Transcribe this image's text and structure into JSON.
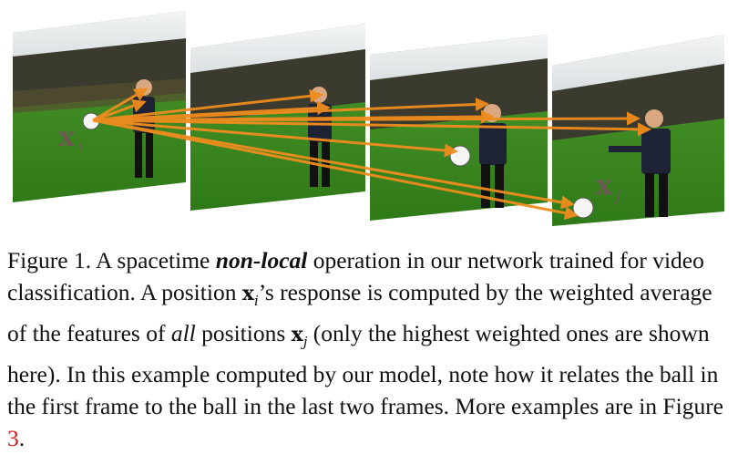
{
  "figure": {
    "frames": [
      {
        "label": "frame-1"
      },
      {
        "label": "frame-2"
      },
      {
        "label": "frame-3"
      },
      {
        "label": "frame-4"
      }
    ],
    "label_xi": {
      "main": "x",
      "sub": "i"
    },
    "label_xj": {
      "main": "x",
      "sub": "j"
    },
    "colors": {
      "arrow": "#f08c1e",
      "grass": "#3f8a22",
      "trees": "#3b3a2e",
      "sky": "#e9ecef"
    }
  },
  "caption": {
    "part1": "Figure 1. A spacetime ",
    "emph1": "non-local",
    "part2": " operation in our network trained for video classification. A position ",
    "xi_main": "x",
    "xi_sub": "i",
    "part3": "’s response is computed by the weighted average of the features of ",
    "emph2": "all",
    "part4": " positions ",
    "xj_main": "x",
    "xj_sub": "j",
    "part5": " (only the highest weighted ones are shown here). In this example computed by our model, note how it relates the ball in the first frame to the ball in the last two frames. More examples are in Figure ",
    "ref": "3",
    "part6": "."
  }
}
